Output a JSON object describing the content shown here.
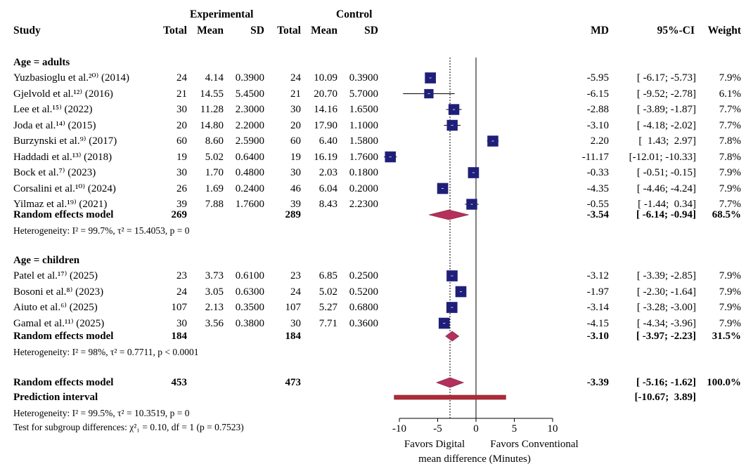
{
  "header": {
    "group_exp": "Experimental",
    "group_ctrl": "Control",
    "study": "Study",
    "total": "Total",
    "mean": "Mean",
    "sd": "SD",
    "md": "MD",
    "ci": "95%-CI",
    "weight": "Weight"
  },
  "sections": [
    {
      "title": "Age = adults",
      "studies": [
        {
          "name": "Yuzbasioglu et al.²⁰⁾ (2014)",
          "e_total": "24",
          "e_mean": "4.14",
          "e_sd": "0.3900",
          "c_total": "24",
          "c_mean": "10.09",
          "c_sd": "0.3900",
          "md_text": "-5.95",
          "ci_text": "[ -6.17; -5.73]",
          "weight": "7.9%"
        },
        {
          "name": "Gjelvold et al.¹²⁾ (2016)",
          "e_total": "21",
          "e_mean": "14.55",
          "e_sd": "5.4500",
          "c_total": "21",
          "c_mean": "20.70",
          "c_sd": "5.7000",
          "md_text": "-6.15",
          "ci_text": "[ -9.52; -2.78]",
          "weight": "6.1%"
        },
        {
          "name": "Lee et al.¹⁵⁾ (2022)",
          "e_total": "30",
          "e_mean": "11.28",
          "e_sd": "2.3000",
          "c_total": "30",
          "c_mean": "14.16",
          "c_sd": "1.6500",
          "md_text": "-2.88",
          "ci_text": "[ -3.89; -1.87]",
          "weight": "7.7%"
        },
        {
          "name": "Joda et al.¹⁴⁾ (2015)",
          "e_total": "20",
          "e_mean": "14.80",
          "e_sd": "2.2000",
          "c_total": "20",
          "c_mean": "17.90",
          "c_sd": "1.1000",
          "md_text": "-3.10",
          "ci_text": "[ -4.18; -2.02]",
          "weight": "7.7%"
        },
        {
          "name": "Burzynski et al.⁹⁾ (2017)",
          "e_total": "60",
          "e_mean": "8.60",
          "e_sd": "2.5900",
          "c_total": "60",
          "c_mean": "6.40",
          "c_sd": "1.5800",
          "md_text": "2.20",
          "ci_text": "[  1.43;  2.97]",
          "weight": "7.8%"
        },
        {
          "name": "Haddadi et al.¹³⁾ (2018)",
          "e_total": "19",
          "e_mean": "5.02",
          "e_sd": "0.6400",
          "c_total": "19",
          "c_mean": "16.19",
          "c_sd": "1.7600",
          "md_text": "-11.17",
          "ci_text": "[-12.01; -10.33]",
          "weight": "7.8%"
        },
        {
          "name": "Bock et al.⁷⁾ (2023)",
          "e_total": "30",
          "e_mean": "1.70",
          "e_sd": "0.4800",
          "c_total": "30",
          "c_mean": "2.03",
          "c_sd": "0.1800",
          "md_text": "-0.33",
          "ci_text": "[ -0.51; -0.15]",
          "weight": "7.9%"
        },
        {
          "name": "Corsalini et al.¹⁰⁾ (2024)",
          "e_total": "26",
          "e_mean": "1.69",
          "e_sd": "0.2400",
          "c_total": "46",
          "c_mean": "6.04",
          "c_sd": "0.2000",
          "md_text": "-4.35",
          "ci_text": "[ -4.46; -4.24]",
          "weight": "7.9%"
        },
        {
          "name": "Yilmaz et al.¹⁹⁾ (2021)",
          "e_total": "39",
          "e_mean": "7.88",
          "e_sd": "1.7600",
          "c_total": "39",
          "c_mean": "8.43",
          "c_sd": "2.2300",
          "md_text": "-0.55",
          "ci_text": "[ -1.44;  0.34]",
          "weight": "7.7%"
        }
      ],
      "model": {
        "label": "Random effects model",
        "e_total": "269",
        "c_total": "289",
        "md_text": "-3.54",
        "ci_text": "[ -6.14; -0.94]",
        "weight": "68.5%"
      },
      "heterogeneity": "Heterogeneity: I² = 99.7%, τ² = 15.4053, p = 0"
    },
    {
      "title": "Age = children",
      "studies": [
        {
          "name": "Patel et al.¹⁷⁾ (2025)",
          "e_total": "23",
          "e_mean": "3.73",
          "e_sd": "0.6100",
          "c_total": "23",
          "c_mean": "6.85",
          "c_sd": "0.2500",
          "md_text": "-3.12",
          "ci_text": "[ -3.39; -2.85]",
          "weight": "7.9%"
        },
        {
          "name": "Bosoni et al.⁸⁾ (2023)",
          "e_total": "24",
          "e_mean": "3.05",
          "e_sd": "0.6300",
          "c_total": "24",
          "c_mean": "5.02",
          "c_sd": "0.5200",
          "md_text": "-1.97",
          "ci_text": "[ -2.30; -1.64]",
          "weight": "7.9%"
        },
        {
          "name": "Aiuto et al.⁶⁾ (2025)",
          "e_total": "107",
          "e_mean": "2.13",
          "e_sd": "0.3500",
          "c_total": "107",
          "c_mean": "5.27",
          "c_sd": "0.6800",
          "md_text": "-3.14",
          "ci_text": "[ -3.28; -3.00]",
          "weight": "7.9%"
        },
        {
          "name": "Gamal et al.¹¹⁾ (2025)",
          "e_total": "30",
          "e_mean": "3.56",
          "e_sd": "0.3800",
          "c_total": "30",
          "c_mean": "7.71",
          "c_sd": "0.3600",
          "md_text": "-4.15",
          "ci_text": "[ -4.34; -3.96]",
          "weight": "7.9%"
        }
      ],
      "model": {
        "label": "Random effects model",
        "e_total": "184",
        "c_total": "184",
        "md_text": "-3.10",
        "ci_text": "[ -3.97; -2.23]",
        "weight": "31.5%"
      },
      "heterogeneity": "Heterogeneity: I² = 98%, τ² = 0.7711, p < 0.0001"
    }
  ],
  "overall": {
    "label": "Random effects model",
    "e_total": "453",
    "c_total": "473",
    "md_text": "-3.39",
    "ci_text": "[ -5.16; -1.62]",
    "weight": "100.0%",
    "prediction_label": "Prediction interval",
    "prediction_text": "[-10.67;  3.89]",
    "heterogeneity": "Heterogeneity: I² = 99.5%, τ² = 10.3519, p = 0",
    "subgroup_test": "Test for subgroup differences: χ²₁ = 0.10, df = 1 (p = 0.7523)"
  },
  "axis": {
    "ticks": [
      "-10",
      "-5",
      "0",
      "5",
      "10"
    ],
    "favors_left": "Favors Digital",
    "favors_right": "Favors Conventional",
    "xlabel": "mean difference (Minutes)"
  },
  "colors": {
    "square": "#1f1f7a",
    "diamond": "#b5305a",
    "prediction": "#b02a38",
    "line": "#000000"
  },
  "chart_data": {
    "type": "forest",
    "xlim": [
      -11.5,
      10
    ],
    "xticks": [
      -10,
      -5,
      0,
      5,
      10
    ],
    "xlabel": "mean difference (Minutes)",
    "null_value": 0,
    "overall_estimate": -3.39,
    "studies": [
      {
        "section": 0,
        "md": -5.95,
        "lower": -6.17,
        "upper": -5.73,
        "weight": 7.9
      },
      {
        "section": 0,
        "md": -6.15,
        "lower": -9.52,
        "upper": -2.78,
        "weight": 6.1
      },
      {
        "section": 0,
        "md": -2.88,
        "lower": -3.89,
        "upper": -1.87,
        "weight": 7.7
      },
      {
        "section": 0,
        "md": -3.1,
        "lower": -4.18,
        "upper": -2.02,
        "weight": 7.7
      },
      {
        "section": 0,
        "md": 2.2,
        "lower": 1.43,
        "upper": 2.97,
        "weight": 7.8
      },
      {
        "section": 0,
        "md": -11.17,
        "lower": -12.01,
        "upper": -10.33,
        "weight": 7.8
      },
      {
        "section": 0,
        "md": -0.33,
        "lower": -0.51,
        "upper": -0.15,
        "weight": 7.9
      },
      {
        "section": 0,
        "md": -4.35,
        "lower": -4.46,
        "upper": -4.24,
        "weight": 7.9
      },
      {
        "section": 0,
        "md": -0.55,
        "lower": -1.44,
        "upper": 0.34,
        "weight": 7.7
      },
      {
        "section": 1,
        "md": -3.12,
        "lower": -3.39,
        "upper": -2.85,
        "weight": 7.9
      },
      {
        "section": 1,
        "md": -1.97,
        "lower": -2.3,
        "upper": -1.64,
        "weight": 7.9
      },
      {
        "section": 1,
        "md": -3.14,
        "lower": -3.28,
        "upper": -3.0,
        "weight": 7.9
      },
      {
        "section": 1,
        "md": -4.15,
        "lower": -4.34,
        "upper": -3.96,
        "weight": 7.9
      }
    ],
    "subgroup_models": [
      {
        "section": 0,
        "md": -3.54,
        "lower": -6.14,
        "upper": -0.94
      },
      {
        "section": 1,
        "md": -3.1,
        "lower": -3.97,
        "upper": -2.23
      }
    ],
    "overall_model": {
      "md": -3.39,
      "lower": -5.16,
      "upper": -1.62
    },
    "prediction_interval": {
      "lower": -10.67,
      "upper": 3.89
    }
  }
}
